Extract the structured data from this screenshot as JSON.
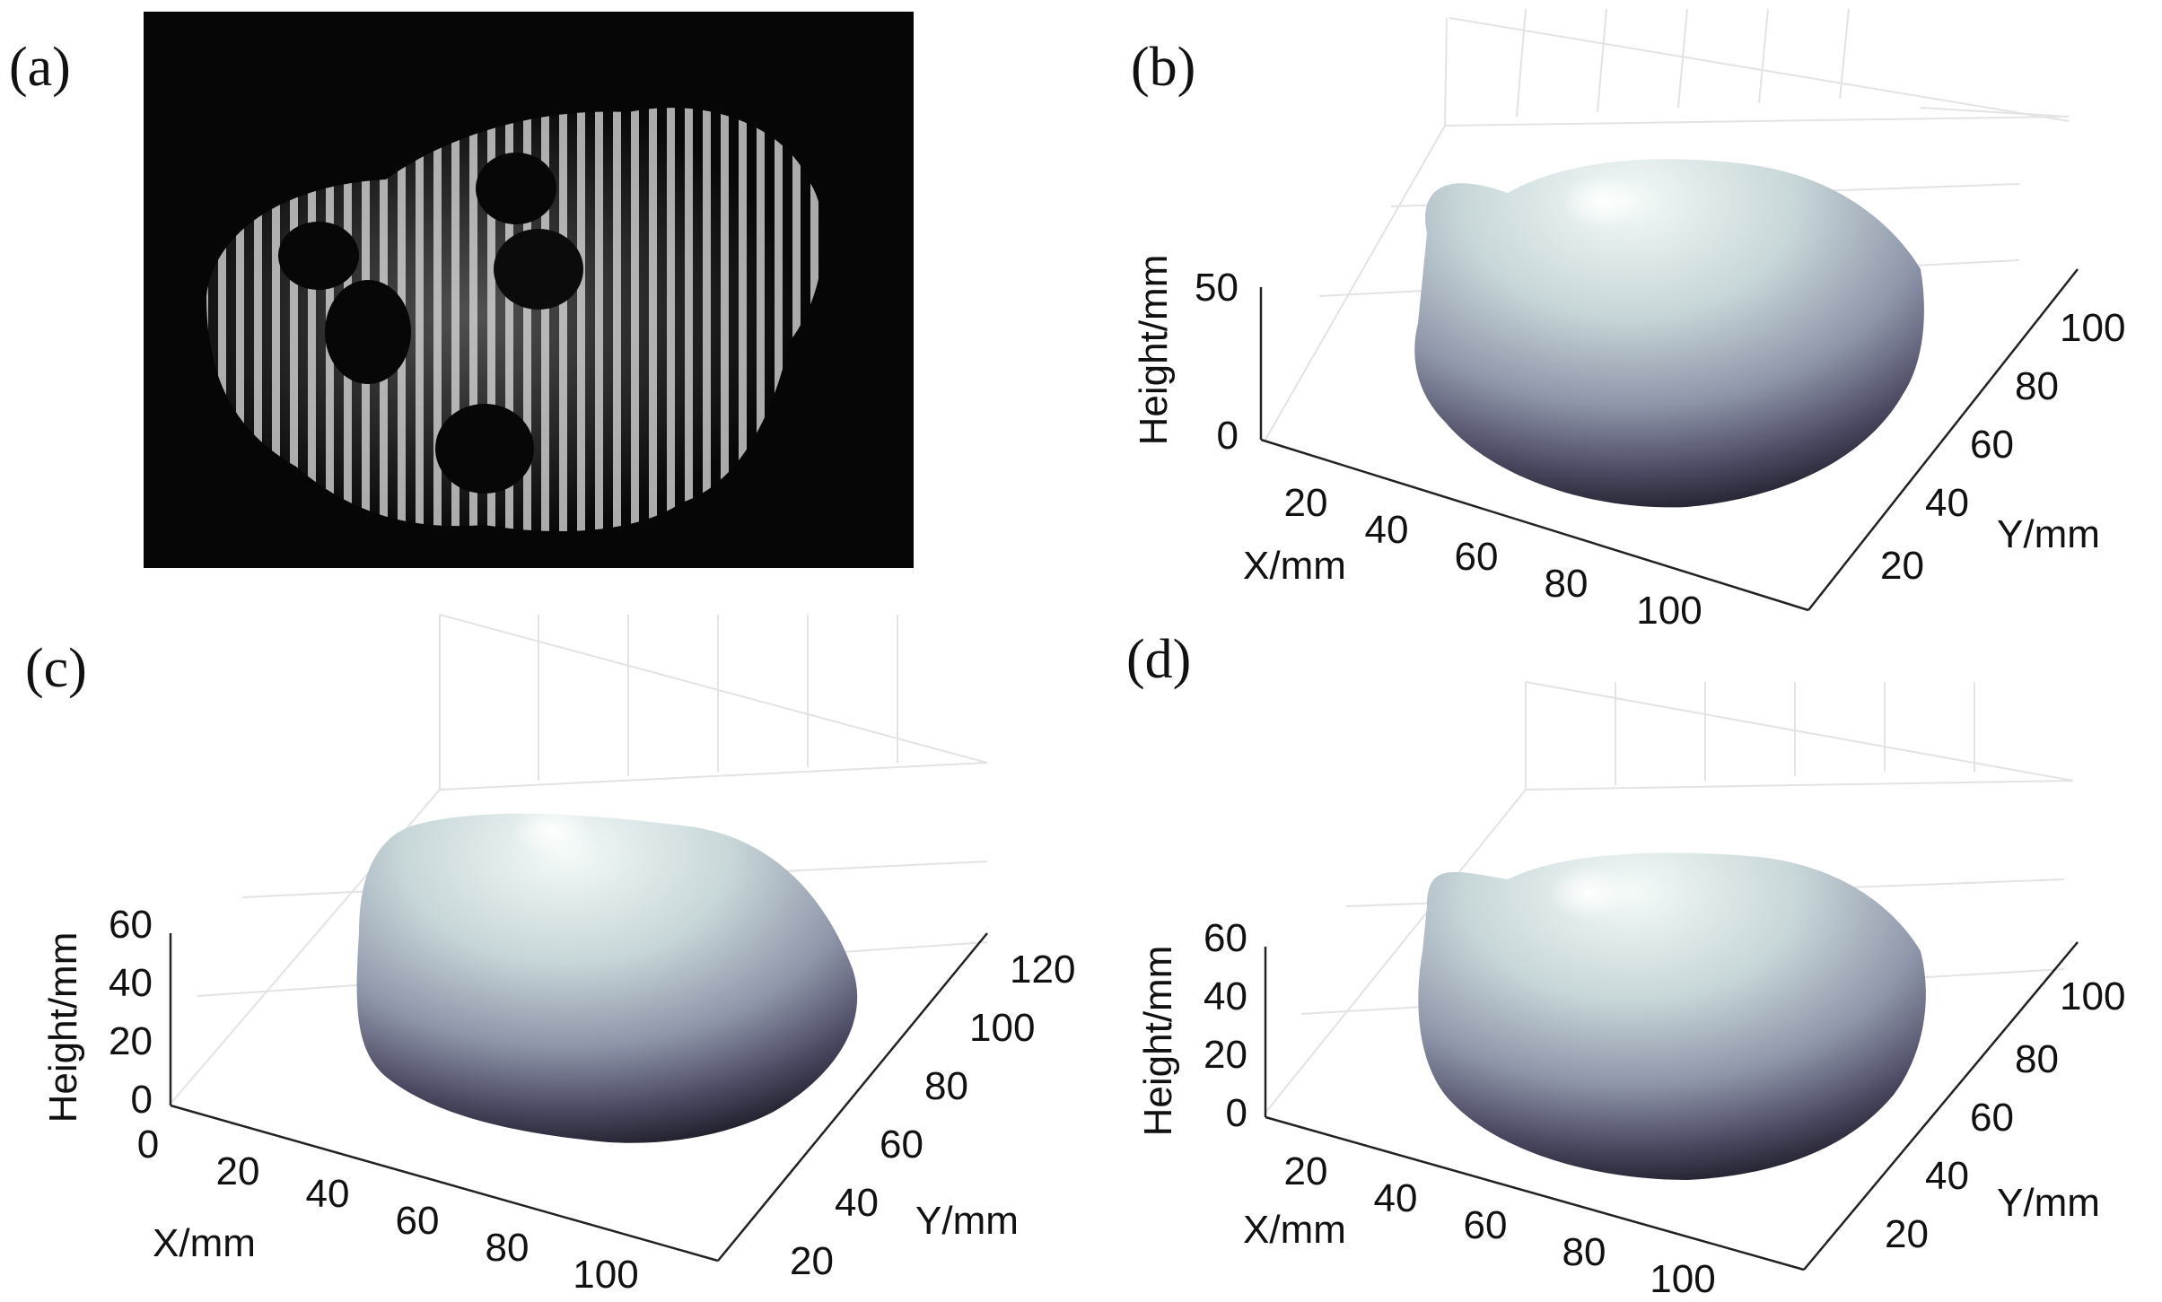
{
  "panels": [
    {
      "id": "a",
      "label": "(a)"
    },
    {
      "id": "b",
      "label": "(b)",
      "xlabel": "X/mm",
      "ylabel": "Y/mm",
      "zlabel": "Height/mm",
      "xticks": [
        "20",
        "40",
        "60",
        "80",
        "100"
      ],
      "yticks": [
        "20",
        "40",
        "60",
        "80",
        "100"
      ],
      "zticks": [
        "0",
        "50"
      ]
    },
    {
      "id": "c",
      "label": "(c)",
      "xlabel": "X/mm",
      "ylabel": "Y/mm",
      "zlabel": "Height/mm",
      "xticks": [
        "0",
        "20",
        "40",
        "60",
        "80",
        "100"
      ],
      "yticks": [
        "20",
        "40",
        "60",
        "80",
        "100",
        "120"
      ],
      "zticks": [
        "0",
        "20",
        "40",
        "60"
      ]
    },
    {
      "id": "d",
      "label": "(d)",
      "xlabel": "X/mm",
      "ylabel": "Y/mm",
      "zlabel": "Height/mm",
      "xticks": [
        "20",
        "40",
        "60",
        "80",
        "100"
      ],
      "yticks": [
        "20",
        "40",
        "60",
        "80",
        "100"
      ],
      "zticks": [
        "0",
        "20",
        "40",
        "60"
      ]
    }
  ],
  "colors": {
    "surface_top": "#eef6f4",
    "surface_mid": "#8d97a8",
    "surface_dark": "#1e1d28",
    "grid": "#e3e3e3",
    "axis": "#222222"
  }
}
